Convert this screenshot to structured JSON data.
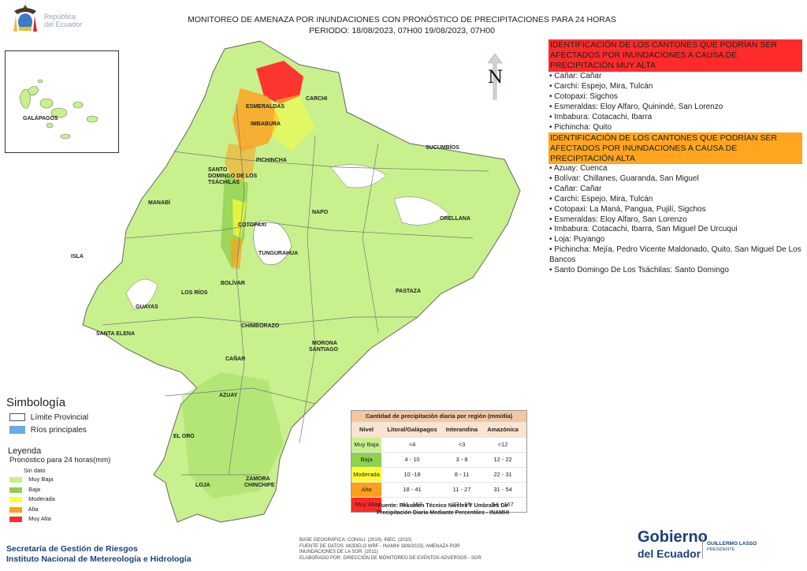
{
  "header": {
    "title_line1": "MONITOREO DE AMENAZA POR INUNDACIONES  CON PRONÓSTICO DE  PRECIPITACIONES PARA 24 HORAS",
    "title_line2": "PERIODO: 18/08/2023, 07H00 19/08/2023, 07H00",
    "logo_line1": "República",
    "logo_line2": "del Ecuador"
  },
  "map": {
    "north_label": "N",
    "inset_label": "GALÁPAGOS",
    "labels": {
      "esmeraldas": "ESMERALDAS",
      "carchi": "CARCHI",
      "imbabura": "IMBABURA",
      "pichincha": "PICHINCHA",
      "sucumbios": "SUCUMBÍOS",
      "santo_domingo_1": "SANTO",
      "santo_domingo_2": "DOMINGO DE LOS",
      "santo_domingo_3": "TSÁCHILAS",
      "manabi": "MANABÍ",
      "napo": "NAPO",
      "orellana": "ORELLANA",
      "cotopaxi": "COTOPAXI",
      "isla": "ISLA",
      "tungurahua": "TUNGURAHUA",
      "bolivar": "BOLÍVAR",
      "los_rios": "LOS RÍOS",
      "guayas": "GUAYAS",
      "pastaza": "PASTAZA",
      "santa_elena": "SANTA ELENA",
      "chimborazo": "CHIMBORAZO",
      "morona_1": "MORONA",
      "morona_2": "SANTIAGO",
      "canar": "CAÑAR",
      "azuay": "AZUAY",
      "el_oro": "EL ORO",
      "loja": "LOJA",
      "zamora_1": "ZAMORA",
      "zamora_2": "CHINCHIPE"
    }
  },
  "alerts": {
    "muy_alta_heading": "IDENTIFICACIÓN DE LOS CANTONES QUE PODRÍAN SER AFECTADOS POR INUNDACIONES  A CAUSA DE PRECIPITACIÓN MUY ALTA",
    "muy_alta_items": [
      "• Cañar: Cañar",
      "• Carchi: Espejo, Mira, Tulcán",
      "• Cotopaxi: Sigchos",
      "• Esmeraldas: Eloy Alfaro, Quinindé, San Lorenzo",
      "• Imbabura: Cotacachi, Ibarra",
      "• Pichincha: Quito"
    ],
    "alta_heading": "IDENTIFICACIÓN DE LOS CANTONES QUE  PODRÍAN SER AFECTADOS POR INUNDACIONES  A CAUSA DE PRECIPITACIÓN ALTA",
    "alta_items": [
      "• Azuay: Cuenca",
      "• Bolívar: Chillanes, Guaranda, San Miguel",
      "• Cañar: Cañar",
      "• Carchi: Espejo, Mira, Tulcán",
      "• Cotopaxi: La Maná, Pangua, Pujilí, Sigchos",
      "• Esmeraldas: Eloy Alfaro, San Lorenzo",
      "• Imbabura: Cotacachi, Ibarra, San Miguel De Urcuqui",
      "• Loja: Puyango",
      "• Pichincha: Mejía, Pedro Vicente Maldonado, Quito, San Miguel De Los Bancos",
      "• Santo Domingo De Los Tsáchilas: Santo Domingo"
    ]
  },
  "legend": {
    "simbologia_title": "Simbología",
    "limite": "Límite Provincial",
    "rios": "Ríos principales",
    "leyenda_title": "Leyenda",
    "pronostico": "Pronóstico para 24 horas(mm)",
    "items": [
      "Sin dato",
      "Muy Baja",
      "Baja",
      "Moderada",
      "Alta",
      "Muy Alta"
    ],
    "colors": [
      "#ffffff",
      "#c8f08c",
      "#8fd14f",
      "#ffff33",
      "#ff9f1c",
      "#ff2a2a"
    ]
  },
  "table": {
    "title": "Cantidad de precipitación diaria por región (mm/día)",
    "headers": [
      "Nivel",
      "Litoral/Galápagos",
      "Interandina",
      "Amazónica"
    ],
    "rows": [
      {
        "nivel": "Muy Baja",
        "litoral": "<4",
        "interandina": "<3",
        "amazonica": "<12",
        "color": "#c8f08c"
      },
      {
        "nivel": "Baja",
        "litoral": "4 - 10",
        "interandina": "3 - 8",
        "amazonica": "12 - 22",
        "color": "#8fd14f"
      },
      {
        "nivel": "Moderada",
        "litoral": "10 -18",
        "interandina": "8 - 11",
        "amazonica": "22 - 31",
        "color": "#ffff33"
      },
      {
        "nivel": "Alta",
        "litoral": "18 - 41",
        "interandina": "11 - 27",
        "amazonica": "31 - 54",
        "color": "#ff9f1c"
      },
      {
        "nivel": "Muy Alta",
        "litoral": "41 -157",
        "interandina": "27 - 99",
        "amazonica": "54 - 167",
        "color": "#ff2a2a"
      }
    ],
    "fuente_line1": "Fuente: Resumen Técnico Niveles Y Umbrales De",
    "fuente_line2": "Precipitación Diaria Mediante Percentiles - INAMHI"
  },
  "footer": {
    "credit1": "BASE GEOGRÁFICA: CONALI. (2019). INEC. (2010)",
    "credit2": "FUENTE DE DATOS: MODELO WRF - INAMHI 18/8/2023).  AMENAZA POR",
    "credit3": "INUNDACIONES DE LA SGR. (2011)",
    "credit4": "ELABORADO POR: DIRECCIÓN DE MONITOREO DE EVENTOS ADVERSOS - SGR",
    "inst1": "Secretaría de Gestión de Riesgos",
    "inst2": "Instituto Nacional de Metereología e Hidrología",
    "gob1": "Gobierno",
    "gob2": "del Ecuador",
    "pres1": "GUILLERMO LASSO",
    "pres2": "PRESIDENTE"
  }
}
